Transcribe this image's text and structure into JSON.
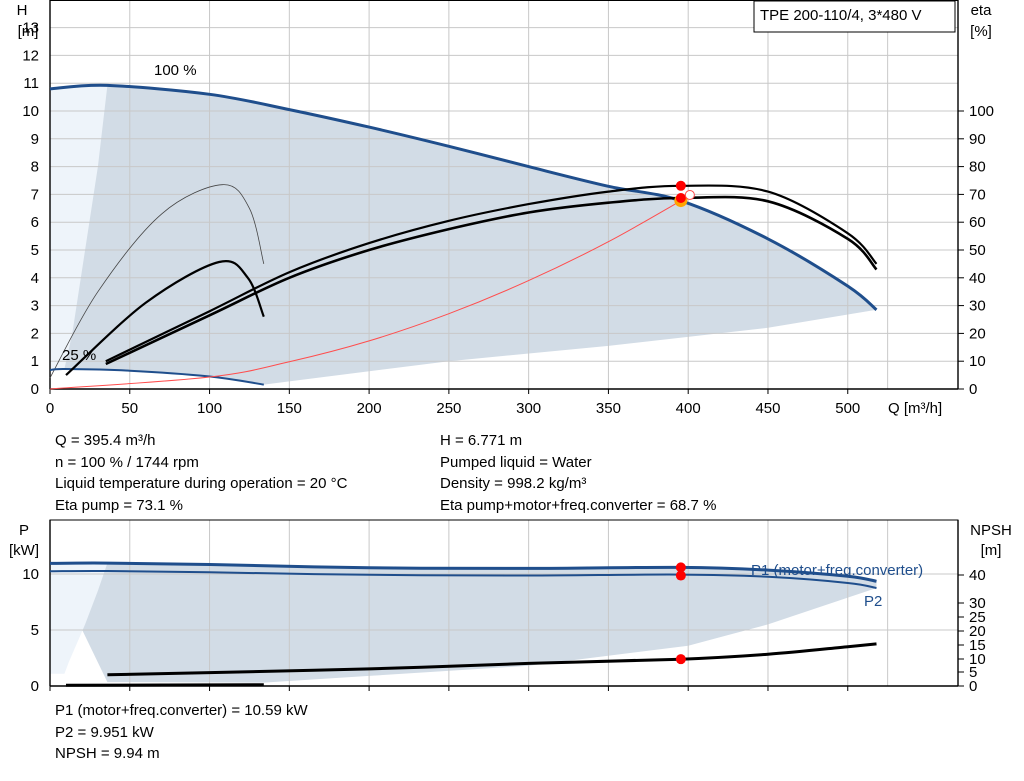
{
  "pump_title": "TPE 200-110/4, 3*480 V",
  "top_chart": {
    "left_axis_label": [
      "H",
      "[m]"
    ],
    "right_axis_label": [
      "eta",
      "[%]"
    ],
    "x_axis_label": "Q [m³/h]",
    "speed_labels": [
      "100 %",
      "25 %"
    ]
  },
  "bottom_chart": {
    "left_axis_label": [
      "P",
      "[kW]"
    ],
    "right_axis_label": [
      "NPSH",
      "[m]"
    ],
    "curve_labels": [
      "P1 (motor+freq.converter)",
      "P2"
    ]
  },
  "info_left": [
    "Q = 395.4 m³/h",
    "n = 100 % / 1744 rpm",
    "Liquid temperature during operation = 20 °C",
    "Eta pump = 73.1 %"
  ],
  "info_right": [
    "H = 6.771 m",
    "Pumped liquid = Water",
    "Density = 998.2 kg/m³",
    "Eta pump+motor+freq.converter = 68.7 %"
  ],
  "info_bottom": [
    "P1 (motor+freq.converter) = 10.59 kW",
    "P2 = 9.951 kW",
    "NPSH = 9.94 m"
  ],
  "colors": {
    "curve_blue": "#1f4e8c",
    "area_fill": "#d2dce6",
    "area_fill_light": "#eef4fa",
    "duty_point": "#ff0000",
    "system_curve": "#ff4d4d",
    "grid": "#c8c8c8"
  },
  "chart_data": [
    {
      "type": "line",
      "title": "",
      "xlabel": "Q [m³/h]",
      "ylabel": "H [m]",
      "y2label": "eta [%]",
      "xlim": [
        0,
        550
      ],
      "ylim": [
        0,
        13
      ],
      "y2lim": [
        0,
        130
      ],
      "x_ticks": [
        0,
        50,
        100,
        150,
        200,
        250,
        300,
        350,
        400,
        450,
        500
      ],
      "y_ticks": [
        0,
        1,
        2,
        3,
        4,
        5,
        6,
        7,
        8,
        9,
        10,
        11,
        12,
        13
      ],
      "y2_ticks": [
        0,
        10,
        20,
        30,
        40,
        50,
        60,
        70,
        80,
        90,
        100
      ],
      "grid": true,
      "series": [
        {
          "name": "100 %",
          "axis": "H",
          "x": [
            0,
            36,
            100,
            150,
            200,
            250,
            300,
            350,
            395.4,
            450,
            500,
            518
          ],
          "y": [
            10.8,
            10.92,
            10.6,
            10.05,
            9.42,
            8.73,
            8.0,
            7.29,
            6.77,
            5.4,
            3.7,
            2.85
          ]
        },
        {
          "name": "25 %",
          "axis": "H",
          "x": [
            0,
            9,
            50,
            100,
            134
          ],
          "y": [
            0.68,
            0.72,
            0.66,
            0.45,
            0.16
          ]
        },
        {
          "name": "Eta pump",
          "axis": "eta",
          "x": [
            35,
            100,
            150,
            200,
            250,
            300,
            350,
            395.4,
            450,
            500,
            518
          ],
          "y": [
            10,
            28,
            42,
            52.5,
            60.5,
            66.5,
            71,
            73.1,
            71,
            56,
            45
          ]
        },
        {
          "name": "Eta pump+motor+freq.converter",
          "axis": "eta",
          "x": [
            35,
            100,
            150,
            200,
            250,
            300,
            350,
            395.4,
            450,
            500,
            518
          ],
          "y": [
            9,
            26.5,
            40,
            50,
            57.5,
            63.5,
            67,
            68.7,
            67.5,
            54,
            43
          ]
        },
        {
          "name": "",
          "axis": "eta",
          "x": [
            10,
            60,
            108,
            125,
            134
          ],
          "y": [
            12,
            57,
            73.5,
            65,
            45
          ]
        },
        {
          "name": "",
          "axis": "eta",
          "x": [
            10,
            60,
            106,
            124,
            134
          ],
          "y": [
            5,
            31,
            45.7,
            40,
            26
          ]
        },
        {
          "name": "System",
          "axis": "H",
          "x": [
            0,
            100,
            150,
            200,
            250,
            300,
            350,
            395.4
          ],
          "y": [
            0,
            0.43,
            0.98,
            1.73,
            2.71,
            3.9,
            5.3,
            6.77
          ]
        }
      ],
      "duty_point": {
        "Q": 395.4,
        "H": 6.771,
        "eta_pump": 73.1,
        "eta_total": 68.7
      }
    },
    {
      "type": "line",
      "title": "",
      "xlabel": "",
      "ylabel": "P [kW]",
      "y2label": "NPSH [m]",
      "xlim": [
        0,
        550
      ],
      "ylim": [
        0,
        12.2
      ],
      "y_ticks": [
        0,
        5,
        10
      ],
      "y2_ticks": [
        0,
        5,
        10,
        15,
        20,
        25,
        30,
        40
      ],
      "grid": true,
      "series": [
        {
          "name": "P1 (motor+freq.converter)",
          "axis": "P",
          "x": [
            0,
            36,
            100,
            200,
            300,
            395.4,
            450,
            500,
            518
          ],
          "y": [
            10.95,
            10.97,
            10.85,
            10.55,
            10.5,
            10.59,
            10.35,
            9.8,
            9.35
          ]
        },
        {
          "name": "P2",
          "axis": "P",
          "x": [
            0,
            36,
            100,
            200,
            300,
            395.4,
            450,
            500,
            518
          ],
          "y": [
            10.25,
            10.27,
            10.15,
            9.93,
            9.87,
            9.95,
            9.75,
            9.2,
            8.75
          ]
        },
        {
          "name": "NPSH",
          "axis": "NPSH",
          "x": [
            36,
            100,
            200,
            300,
            395.4,
            450,
            500,
            518
          ],
          "y": [
            4,
            4.8,
            6.2,
            8.3,
            9.94,
            11.7,
            14.4,
            15.4
          ]
        },
        {
          "name": "",
          "axis": "NPSH",
          "x": [
            10,
            134
          ],
          "y": [
            0.25,
            0.45
          ]
        }
      ],
      "duty_point": {
        "Q": 395.4,
        "P1": 10.59,
        "P2": 9.951,
        "NPSH": 9.94
      }
    }
  ]
}
